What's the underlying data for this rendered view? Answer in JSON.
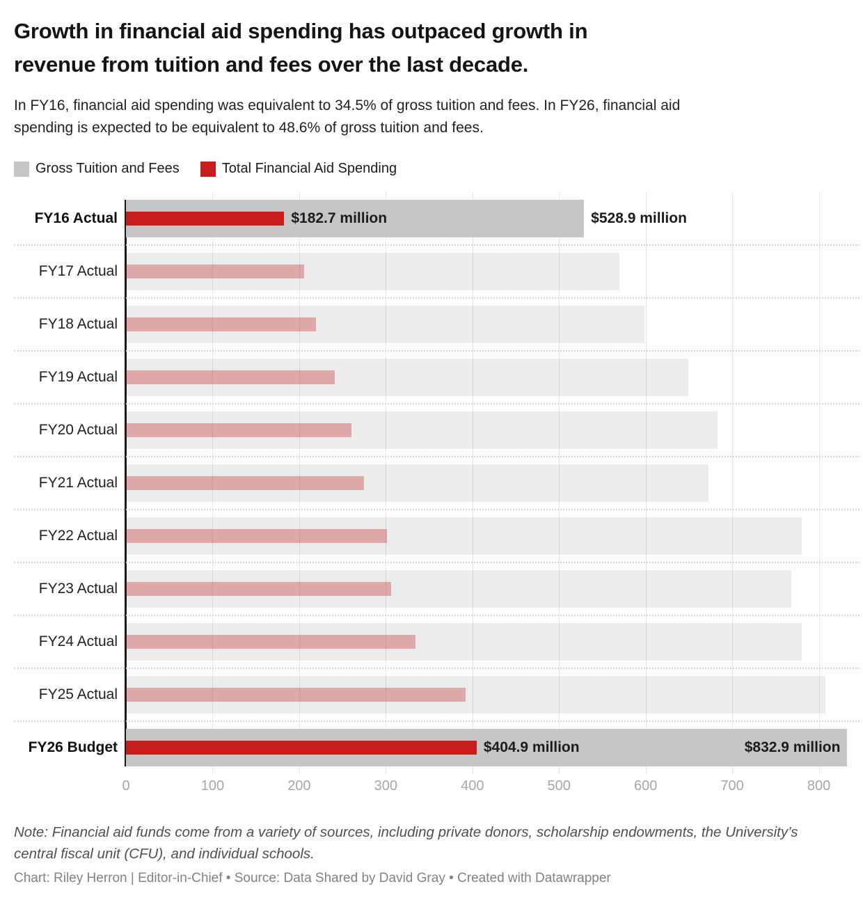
{
  "header": {
    "title": "Growth in financial aid spending has outpaced growth in revenue from tuition and fees over the last decade.",
    "subtitle": "In FY16, financial aid spending was equivalent to 34.5% of gross tuition and fees. In FY26, financial aid spending is expected to be equivalent to 48.6% of gross tuition and fees."
  },
  "legend": {
    "items": [
      {
        "label": "Gross Tuition and Fees",
        "color": "#c6c6c6"
      },
      {
        "label": "Total Financial Aid Spending",
        "color": "#c71d1d"
      }
    ]
  },
  "chart_data": {
    "type": "bar",
    "orientation": "horizontal",
    "title": "Growth in financial aid spending has outpaced growth in revenue from tuition and fees over the last decade.",
    "categories": [
      "FY16 Actual",
      "FY17 Actual",
      "FY18 Actual",
      "FY19 Actual",
      "FY20 Actual",
      "FY21 Actual",
      "FY22 Actual",
      "FY23 Actual",
      "FY24 Actual",
      "FY25 Actual",
      "FY26 Budget"
    ],
    "series": [
      {
        "name": "Gross Tuition and Fees",
        "values": [
          528.9,
          570,
          599,
          649,
          683,
          673,
          780,
          768,
          780,
          808,
          832.9
        ]
      },
      {
        "name": "Total Financial Aid Spending",
        "values": [
          182.7,
          206,
          219,
          241,
          260,
          275,
          301,
          306,
          334,
          392,
          404.9
        ]
      }
    ],
    "highlighted_categories": [
      "FY16 Actual",
      "FY26 Budget"
    ],
    "value_labels": [
      {
        "row": 0,
        "series": 1,
        "text": "$182.7 million",
        "placement": "right-of-bar"
      },
      {
        "row": 0,
        "series": 0,
        "text": "$528.9 million",
        "placement": "right-of-bar"
      },
      {
        "row": 10,
        "series": 1,
        "text": "$404.9 million",
        "placement": "right-of-bar"
      },
      {
        "row": 10,
        "series": 0,
        "text": "$832.9 million",
        "placement": "inside-end"
      }
    ],
    "xticks": [
      0,
      100,
      200,
      300,
      400,
      500,
      600,
      700,
      800
    ],
    "xmax": 851,
    "xlabel": "",
    "ylabel": "",
    "grid": true,
    "legend_position": "top"
  },
  "colors": {
    "tuition_highlight": "#c6c6c6",
    "tuition_muted": "rgba(0,0,0,0.075)",
    "aid_highlight": "#c71d1d",
    "aid_muted": "rgba(199,29,29,0.32)",
    "axis_line": "#191919",
    "gridline": "#e7e7e7",
    "tick_text": "#a6a6a6",
    "separator": "#d5d5d5",
    "value_label": "#1c1c1c"
  },
  "footer": {
    "note": "Note: Financial aid funds come from a variety of sources, including private donors, scholarship endowments, the University’s central fiscal unit (CFU), and individual schools.",
    "credit": "Chart: Riley Herron | Editor-in-Chief • Source: Data Shared by David Gray • Created with Datawrapper"
  }
}
